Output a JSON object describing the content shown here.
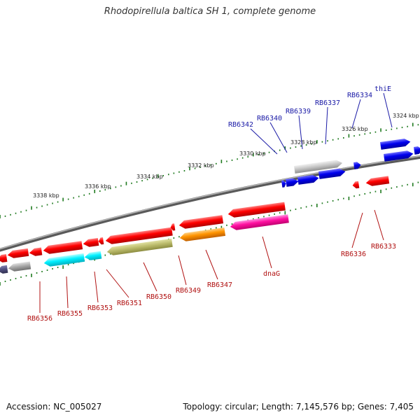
{
  "title": "Rhodopirellula baltica SH 1, complete genome",
  "footer": {
    "accession": "Accession: NC_005027",
    "topology": "Topology: circular; Length: 7,145,576 bp; Genes: 7,405"
  },
  "colors": {
    "backbone": "#808080",
    "tick": "#1f7a1f",
    "forward_label": "#1a1aa6",
    "reverse_label": "#b01010"
  },
  "tick_labels": [
    "3338 kbp",
    "3336 kbp",
    "3334 kbp",
    "3332 kbp",
    "3330 kbp",
    "3328 kbp",
    "3326 kbp",
    "3324 kbp"
  ],
  "forward_genes": [
    "RB6342",
    "RB6340",
    "RB6339",
    "RB6337",
    "RB6334",
    "thiE"
  ],
  "reverse_genes": [
    "RB6356",
    "RB6355",
    "RB6353",
    "RB6351",
    "RB6350",
    "RB6349",
    "RB6347",
    "dnaG",
    "RB6336",
    "RB6333"
  ]
}
